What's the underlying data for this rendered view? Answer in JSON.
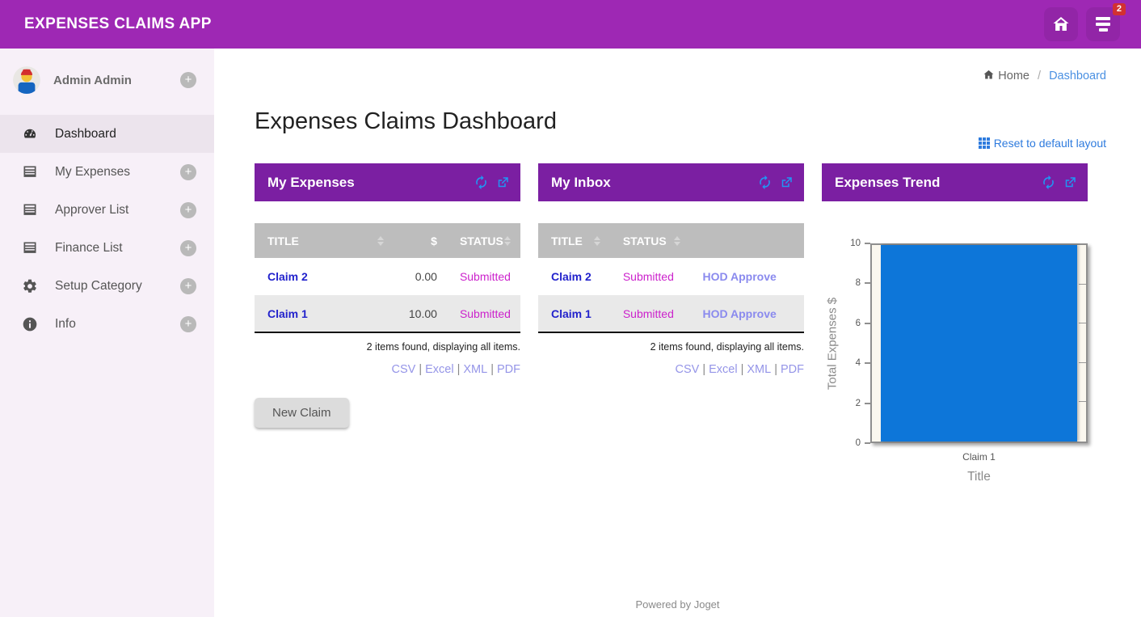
{
  "topbar": {
    "app_title": "EXPENSES CLAIMS APP",
    "inbox_badge_count": "2"
  },
  "sidebar": {
    "user": {
      "name": "Admin Admin"
    },
    "items": [
      {
        "label": "Dashboard",
        "icon": "dashboard-icon",
        "active": true,
        "has_plus": false
      },
      {
        "label": "My Expenses",
        "icon": "list-icon",
        "active": false,
        "has_plus": true
      },
      {
        "label": "Approver List",
        "icon": "list-icon",
        "active": false,
        "has_plus": true
      },
      {
        "label": "Finance List",
        "icon": "list-icon",
        "active": false,
        "has_plus": true
      },
      {
        "label": "Setup Category",
        "icon": "gear-icon",
        "active": false,
        "has_plus": true
      },
      {
        "label": "Info",
        "icon": "info-icon",
        "active": false,
        "has_plus": true
      }
    ]
  },
  "breadcrumb": {
    "home": "Home",
    "separator": "/",
    "current": "Dashboard"
  },
  "page": {
    "title": "Expenses Claims Dashboard",
    "reset_link": "Reset to default layout",
    "footer": "Powered by Joget"
  },
  "panels": {
    "my_expenses": {
      "title": "My Expenses",
      "columns": {
        "title": "TITLE",
        "amount": "$",
        "status": "STATUS"
      },
      "rows": [
        {
          "title": "Claim 2",
          "amount": "0.00",
          "status": "Submitted"
        },
        {
          "title": "Claim 1",
          "amount": "10.00",
          "status": "Submitted"
        }
      ],
      "summary": "2 items found, displaying all items.",
      "exports": [
        "CSV",
        "Excel",
        "XML",
        "PDF"
      ],
      "new_claim_button": "New Claim"
    },
    "my_inbox": {
      "title": "My Inbox",
      "columns": {
        "title": "TITLE",
        "status": "STATUS"
      },
      "rows": [
        {
          "title": "Claim 2",
          "status": "Submitted",
          "action": "HOD Approve"
        },
        {
          "title": "Claim 1",
          "status": "Submitted",
          "action": "HOD Approve"
        }
      ],
      "summary": "2 items found, displaying all items.",
      "exports": [
        "CSV",
        "Excel",
        "XML",
        "PDF"
      ]
    },
    "expenses_trend": {
      "title": "Expenses Trend"
    }
  },
  "chart_data": {
    "type": "bar",
    "categories": [
      "Claim 1"
    ],
    "values": [
      10
    ],
    "title": "",
    "xlabel": "Title",
    "ylabel": "Total Expenses $",
    "ylim": [
      0,
      10
    ],
    "yticks": [
      0,
      2,
      4,
      6,
      8,
      10
    ],
    "bar_color": "#0d76d9",
    "legend": false,
    "grid": false
  },
  "colors": {
    "topbar_purple": "#9e28b4",
    "panel_header_purple": "#7b1fa2",
    "claim_link_blue": "#2222cc",
    "status_magenta": "#cc22cc",
    "action_periwinkle": "#8a8aee",
    "bar_blue": "#0d76d9",
    "badge_red": "#d23131",
    "breadcrumb_link_blue": "#4a90e2",
    "reset_link_blue": "#2e7bde"
  }
}
